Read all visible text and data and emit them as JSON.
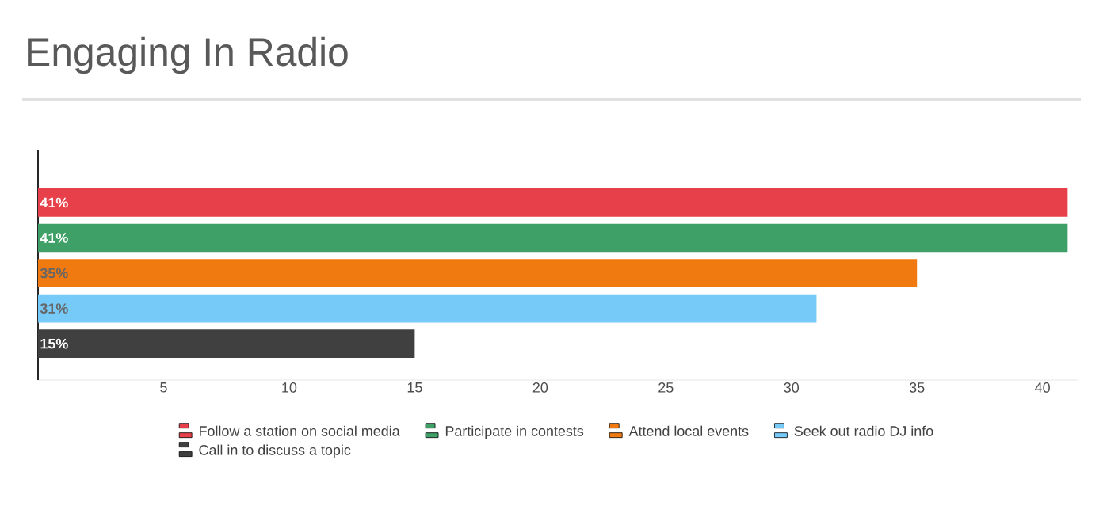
{
  "chart_data": {
    "type": "bar",
    "orientation": "horizontal",
    "title": "Engaging In Radio",
    "categories": [
      null
    ],
    "series": [
      {
        "name": "Follow a station on social media",
        "color": "#e8404a",
        "values": [
          41
        ],
        "value_labels": [
          "41%"
        ]
      },
      {
        "name": "Participate in contests",
        "color": "#3e9f67",
        "values": [
          41
        ],
        "value_labels": [
          "41%"
        ]
      },
      {
        "name": "Attend local events",
        "color": "#f07a10",
        "values": [
          35
        ],
        "value_labels": [
          "35%"
        ]
      },
      {
        "name": "Seek out radio DJ info",
        "color": "#75caf8",
        "values": [
          31
        ],
        "value_labels": [
          "31%"
        ]
      },
      {
        "name": "Call in to discuss a topic",
        "color": "#404040",
        "values": [
          15
        ],
        "value_labels": [
          "15%"
        ]
      }
    ],
    "xlim": [
      0,
      41.4
    ],
    "xticks": [
      5,
      10,
      15,
      20,
      25,
      30,
      35,
      40
    ],
    "legend": "bottom",
    "tick_labels": "x"
  }
}
